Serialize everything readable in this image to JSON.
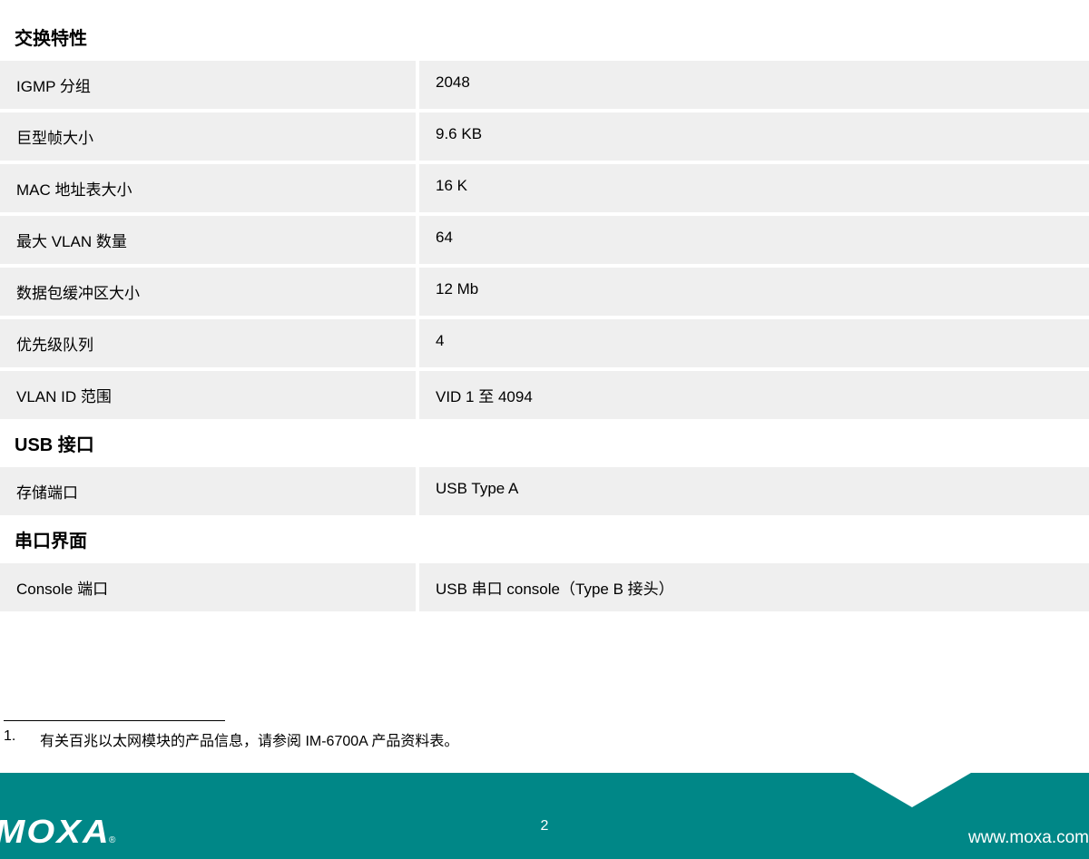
{
  "sections": [
    {
      "title": "交换特性",
      "rows": [
        {
          "label": "IGMP 分组",
          "value": "2048"
        },
        {
          "label": "巨型帧大小",
          "value": "9.6 KB"
        },
        {
          "label": "MAC 地址表大小",
          "value": "16 K"
        },
        {
          "label": "最大 VLAN 数量",
          "value": "64"
        },
        {
          "label": "数据包缓冲区大小",
          "value": "12 Mb"
        },
        {
          "label": "优先级队列",
          "value": "4"
        },
        {
          "label": "VLAN ID 范围",
          "value": "VID 1 至 4094"
        }
      ]
    },
    {
      "title": "USB 接口",
      "rows": [
        {
          "label": "存储端口",
          "value": "USB Type A"
        }
      ]
    },
    {
      "title": "串口界面",
      "rows": [
        {
          "label": "Console 端口",
          "value": "USB 串口 console（Type B 接头）"
        }
      ]
    }
  ],
  "footnote": {
    "num": "1.",
    "text": "有关百兆以太网模块的产品信息，请参阅 IM-6700A 产品资料表。"
  },
  "footer": {
    "logo": "MOXA",
    "reg": "®",
    "page": "2",
    "url": "www.moxa.com"
  },
  "colors": {
    "row_bg": "#efefef",
    "footer_bg": "#008787",
    "text": "#000000",
    "footer_text": "#ffffff"
  }
}
